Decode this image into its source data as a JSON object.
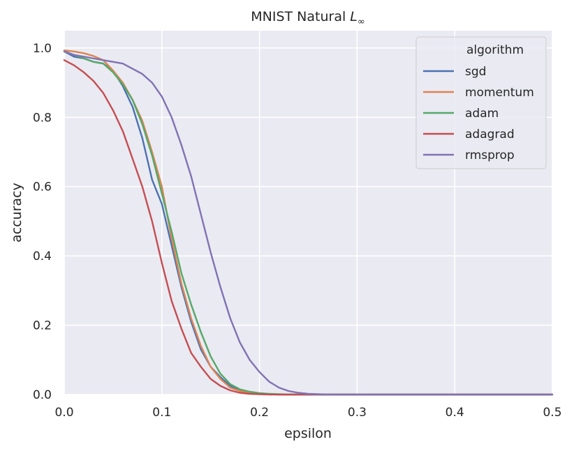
{
  "chart_data": {
    "type": "line",
    "title": "MNIST Natural",
    "title_symbol": "L",
    "title_subscript": "∞",
    "xlabel": "epsilon",
    "ylabel": "accuracy",
    "xlim": [
      0.0,
      0.5
    ],
    "ylim": [
      0.0,
      1.05
    ],
    "xticks": [
      0.0,
      0.1,
      0.2,
      0.3,
      0.4,
      0.5
    ],
    "xtick_labels": [
      "0.0",
      "0.1",
      "0.2",
      "0.3",
      "0.4",
      "0.5"
    ],
    "yticks": [
      0.0,
      0.2,
      0.4,
      0.6,
      0.8,
      1.0
    ],
    "ytick_labels": [
      "0.0",
      "0.2",
      "0.4",
      "0.6",
      "0.8",
      "1.0"
    ],
    "grid": true,
    "legend_title": "algorithm",
    "legend_position": "top-right",
    "x": [
      0.0,
      0.01,
      0.02,
      0.03,
      0.04,
      0.05,
      0.06,
      0.07,
      0.08,
      0.09,
      0.1,
      0.11,
      0.12,
      0.13,
      0.14,
      0.15,
      0.16,
      0.17,
      0.18,
      0.19,
      0.2,
      0.21,
      0.22,
      0.23,
      0.24,
      0.25,
      0.26,
      0.27,
      0.28,
      0.29,
      0.3,
      0.35,
      0.4,
      0.45,
      0.5
    ],
    "series": [
      {
        "name": "sgd",
        "color": "#4c72b0",
        "values": [
          0.99,
          0.975,
          0.97,
          0.96,
          0.955,
          0.935,
          0.89,
          0.83,
          0.74,
          0.62,
          0.55,
          0.43,
          0.31,
          0.21,
          0.13,
          0.08,
          0.05,
          0.025,
          0.012,
          0.005,
          0.002,
          0.001,
          0.0,
          0.0,
          0.0,
          0.0,
          0.0,
          0.0,
          0.0,
          0.0,
          0.0,
          0.0,
          0.0,
          0.0,
          0.0
        ]
      },
      {
        "name": "momentum",
        "color": "#dd8452",
        "values": [
          0.993,
          0.99,
          0.985,
          0.977,
          0.965,
          0.935,
          0.9,
          0.85,
          0.79,
          0.7,
          0.6,
          0.45,
          0.32,
          0.22,
          0.14,
          0.08,
          0.045,
          0.02,
          0.01,
          0.005,
          0.002,
          0.001,
          0.0,
          0.0,
          0.0,
          0.0,
          0.0,
          0.0,
          0.0,
          0.0,
          0.0,
          0.0,
          0.0,
          0.0,
          0.0
        ]
      },
      {
        "name": "adam",
        "color": "#55a868",
        "values": [
          0.99,
          0.98,
          0.97,
          0.96,
          0.955,
          0.93,
          0.895,
          0.85,
          0.78,
          0.69,
          0.58,
          0.47,
          0.35,
          0.26,
          0.18,
          0.11,
          0.06,
          0.03,
          0.015,
          0.008,
          0.004,
          0.002,
          0.001,
          0.0,
          0.0,
          0.0,
          0.0,
          0.0,
          0.0,
          0.0,
          0.0,
          0.0,
          0.0,
          0.0,
          0.0
        ]
      },
      {
        "name": "adagrad",
        "color": "#c44e52",
        "values": [
          0.965,
          0.95,
          0.93,
          0.905,
          0.87,
          0.82,
          0.76,
          0.68,
          0.6,
          0.5,
          0.38,
          0.27,
          0.19,
          0.12,
          0.08,
          0.045,
          0.025,
          0.012,
          0.005,
          0.002,
          0.001,
          0.0,
          0.0,
          0.0,
          0.0,
          0.0,
          0.0,
          0.0,
          0.0,
          0.0,
          0.0,
          0.0,
          0.0,
          0.0,
          0.0
        ]
      },
      {
        "name": "rmsprop",
        "color": "#8172b3",
        "values": [
          0.99,
          0.98,
          0.975,
          0.97,
          0.965,
          0.96,
          0.955,
          0.94,
          0.925,
          0.9,
          0.86,
          0.8,
          0.72,
          0.63,
          0.52,
          0.41,
          0.31,
          0.22,
          0.15,
          0.1,
          0.065,
          0.037,
          0.02,
          0.01,
          0.005,
          0.002,
          0.001,
          0.0,
          0.0,
          0.0,
          0.0,
          0.0,
          0.0,
          0.0,
          0.0
        ]
      }
    ]
  }
}
